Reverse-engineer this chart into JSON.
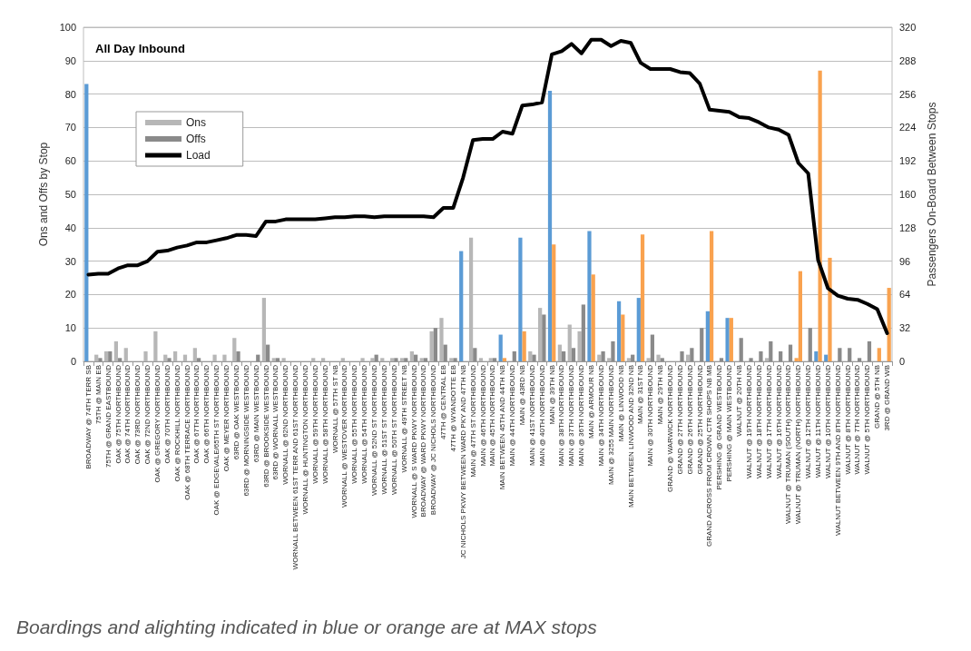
{
  "chart_data": {
    "type": "bar",
    "title": "All Day Inbound",
    "ylabel": "Ons and Offs by Stop",
    "y2label": "Passengers On-Board Between Stops",
    "annotations": [
      "Boardings and alighting indicated in blue or orange are at MAX stops"
    ],
    "categories": [
      "BROADWAY @ 74TH TERR SB",
      "75TH @ MAIN EB",
      "75TH @ GRAND EASTBOUND",
      "OAK @ 75TH NORTHBOUND",
      "OAK @ 74TH NORTHBOUND",
      "OAK @ 73RD NORTHBOUND",
      "OAK @ 72ND NORTHBOUND",
      "OAK @ GREGORY NORTHBOUND",
      "OAK @ 70TH NORTHBOUND",
      "OAK @ ROCKHILL NORTHBOUND",
      "OAK @ 68TH TERRACE NORTHBOUND",
      "OAK @ 67TH NORTHBOUND",
      "OAK @ 66TH NORTHBOUND",
      "OAK @ EDGEVALE/65TH ST NORTHBOUND",
      "OAK @ MEYER NORTHBOUND",
      "63RD @ OAK WESTBOUND",
      "63RD @ MORNINGSIDE WESTBOUND",
      "63RD @ MAIN WESTBOUND",
      "63RD @ BROOKSIDE WESTBOUND",
      "63RD @ WORNALL WESTBOUND",
      "WORNALL @ 62ND NORTHBOUND",
      "WORNALL BETWEEN 61ST TERR AND 61ST NORTHBOUND",
      "WORNALL @ HUNTINGTON NORTHBOUND",
      "WORNALL @ 59TH NORTHBOUND",
      "WORNALL @ 58TH NORTHBOUND",
      "WORNALL @ 57TH ST NB",
      "WORNALL @ WESTOVER NORTHBOUND",
      "WORNALL @ 55TH NORTHBOUND",
      "WORNALL @ 54TH NORTHBOUND",
      "WORNALL @ 52ND ST NORTHBOUND",
      "WORNALL @ 51ST ST NORTHBOUND",
      "WORNALL @ 50TH ST NORTHBOUND",
      "WORNALL @ 49TH STREET NB",
      "WORNALL @ S WARD PKWY NORTHBOUND",
      "BROADWAY @ WARD PKWY NORTHBOUND",
      "BROADWAY @ JC NICHOLS NORTHBOUND",
      "47TH @ CENTRAL EB",
      "47TH @ WYANDOTTE EB",
      "JC NICHOLS PKWY BETWEEN WARD PKY AND 47TH NB",
      "MAIN @ 47TH ST NORTHBOUND",
      "MAIN @ 46TH NORTHBOUND",
      "MAIN @ 45TH NORTHBOUND",
      "MAIN BETWEEN 45TH AND 44TH NB",
      "MAIN @ 44TH NORTHBOUND",
      "MAIN @ 43RD NB",
      "MAIN @ 41ST NORTHBOUND",
      "MAIN @ 40TH NORTHBOUND",
      "MAIN @ 39TH NB",
      "MAIN @ 38TH NORTHBOUND",
      "MAIN @ 37TH NORTHBOUND",
      "MAIN @ 36TH NORTHBOUND",
      "MAIN @ ARMOUR NB",
      "MAIN @ 34TH NORTHBOUND",
      "MAIN @ 3255 MAIN NORTHBOUND",
      "MAIN @ LINWOOD NB",
      "MAIN BETWEEN LINWOOD AND 32ND NB",
      "MAIN @ 31ST NB",
      "MAIN @ 30TH NORTHBOUND",
      "MAIN @ 29TH NB",
      "GRAND @ WARWICK NORTHBOUND",
      "GRAND @ 27TH NORTHBOUND",
      "GRAND @ 26TH NORTHBOUND",
      "GRAND @ 25TH NORTHBOUND",
      "GRAND ACROSS FROM CROWN CTR SHOPS NB MB",
      "PERSHING @ GRAND WESTBOUND",
      "PERSHING @ MAIN WESTBOUND",
      "WALNUT @ 20TH NB",
      "WALNUT @ 19TH NORTHBOUND",
      "WALNUT @ 18TH NORTHBOUND",
      "WALNUT @ 17TH NORTHBOUND",
      "WALNUT @ 16TH NORTHBOUND",
      "WALNUT @ TRUMAN (SOUTH) NORTHBOUND",
      "WALNUT @ TRUMAN (NORTH) NORTHBOUND",
      "WALNUT @ 12TH NORTHBOUND",
      "WALNUT @ 11TH NORTHBOUND",
      "WALNUT @ 10TH NORTHBOUND",
      "WALNUT BETWEEN 9TH AND 8TH NORTHBOUND",
      "WALNUT @ 8TH NORTHBOUND",
      "WALNUT @ 7TH NORTHBOUND",
      "WALNUT @ 5TH NORTHBOUND",
      "GRAND @ 5TH NB",
      "3RD @ GRAND WB"
    ],
    "series": [
      {
        "name": "Ons",
        "color": "#b7b7b7",
        "values": [
          83,
          2,
          3,
          6,
          4,
          0,
          3,
          9,
          2,
          3,
          2,
          4,
          0,
          2,
          2,
          7,
          0,
          0,
          19,
          1,
          1,
          0,
          0,
          1,
          1,
          0,
          1,
          0,
          1,
          1,
          1,
          1,
          1,
          3,
          1,
          9,
          13,
          1,
          33,
          37,
          1,
          1,
          8,
          0,
          37,
          3,
          16,
          81,
          5,
          11,
          9,
          39,
          2,
          1,
          18,
          1,
          19,
          1,
          2,
          0,
          0,
          2,
          0,
          15,
          0,
          13,
          0,
          0,
          0,
          1,
          0,
          0,
          1,
          0,
          3,
          2,
          0,
          0,
          0,
          0,
          0,
          0
        ],
        "colors": [
          "#5b9bd5",
          "#b7b7b7",
          "#b7b7b7",
          "#b7b7b7",
          "#b7b7b7",
          "#b7b7b7",
          "#b7b7b7",
          "#b7b7b7",
          "#b7b7b7",
          "#b7b7b7",
          "#b7b7b7",
          "#b7b7b7",
          "#b7b7b7",
          "#b7b7b7",
          "#b7b7b7",
          "#b7b7b7",
          "#b7b7b7",
          "#b7b7b7",
          "#b7b7b7",
          "#b7b7b7",
          "#b7b7b7",
          "#b7b7b7",
          "#b7b7b7",
          "#b7b7b7",
          "#b7b7b7",
          "#b7b7b7",
          "#b7b7b7",
          "#b7b7b7",
          "#b7b7b7",
          "#b7b7b7",
          "#b7b7b7",
          "#b7b7b7",
          "#b7b7b7",
          "#b7b7b7",
          "#b7b7b7",
          "#b7b7b7",
          "#b7b7b7",
          "#b7b7b7",
          "#5b9bd5",
          "#b7b7b7",
          "#b7b7b7",
          "#b7b7b7",
          "#5b9bd5",
          "#b7b7b7",
          "#5b9bd5",
          "#b7b7b7",
          "#b7b7b7",
          "#5b9bd5",
          "#b7b7b7",
          "#b7b7b7",
          "#b7b7b7",
          "#5b9bd5",
          "#b7b7b7",
          "#b7b7b7",
          "#5b9bd5",
          "#b7b7b7",
          "#5b9bd5",
          "#b7b7b7",
          "#b7b7b7",
          "#b7b7b7",
          "#b7b7b7",
          "#b7b7b7",
          "#b7b7b7",
          "#5b9bd5",
          "#b7b7b7",
          "#5b9bd5",
          "#b7b7b7",
          "#b7b7b7",
          "#b7b7b7",
          "#b7b7b7",
          "#b7b7b7",
          "#b7b7b7",
          "#f9a24f",
          "#b7b7b7",
          "#5b9bd5",
          "#5b9bd5",
          "#b7b7b7",
          "#b7b7b7",
          "#b7b7b7",
          "#b7b7b7",
          "#b7b7b7",
          "#b7b7b7"
        ]
      },
      {
        "name": "Offs",
        "color": "#8a8a8a",
        "values": [
          0,
          1,
          3,
          1,
          0,
          0,
          0,
          0,
          1,
          0,
          0,
          1,
          0,
          0,
          0,
          3,
          0,
          2,
          5,
          1,
          0,
          0,
          0,
          0,
          0,
          0,
          0,
          0,
          0,
          2,
          0,
          1,
          1,
          2,
          1,
          10,
          5,
          1,
          0,
          4,
          0,
          1,
          1,
          3,
          9,
          2,
          14,
          35,
          3,
          4,
          17,
          26,
          3,
          6,
          14,
          2,
          38,
          8,
          1,
          0,
          3,
          4,
          10,
          39,
          1,
          13,
          7,
          1,
          3,
          6,
          3,
          5,
          27,
          10,
          87,
          31,
          4,
          4,
          1,
          6,
          4,
          22
        ],
        "colors": [
          "#8a8a8a",
          "#8a8a8a",
          "#8a8a8a",
          "#8a8a8a",
          "#8a8a8a",
          "#8a8a8a",
          "#8a8a8a",
          "#8a8a8a",
          "#8a8a8a",
          "#8a8a8a",
          "#8a8a8a",
          "#8a8a8a",
          "#8a8a8a",
          "#8a8a8a",
          "#8a8a8a",
          "#8a8a8a",
          "#8a8a8a",
          "#8a8a8a",
          "#8a8a8a",
          "#8a8a8a",
          "#8a8a8a",
          "#8a8a8a",
          "#8a8a8a",
          "#8a8a8a",
          "#8a8a8a",
          "#8a8a8a",
          "#8a8a8a",
          "#8a8a8a",
          "#8a8a8a",
          "#8a8a8a",
          "#8a8a8a",
          "#8a8a8a",
          "#8a8a8a",
          "#8a8a8a",
          "#8a8a8a",
          "#8a8a8a",
          "#8a8a8a",
          "#8a8a8a",
          "#8a8a8a",
          "#8a8a8a",
          "#8a8a8a",
          "#8a8a8a",
          "#f9a24f",
          "#8a8a8a",
          "#f9a24f",
          "#8a8a8a",
          "#8a8a8a",
          "#f9a24f",
          "#8a8a8a",
          "#8a8a8a",
          "#8a8a8a",
          "#f9a24f",
          "#8a8a8a",
          "#8a8a8a",
          "#f9a24f",
          "#8a8a8a",
          "#f9a24f",
          "#8a8a8a",
          "#8a8a8a",
          "#8a8a8a",
          "#8a8a8a",
          "#8a8a8a",
          "#8a8a8a",
          "#f9a24f",
          "#8a8a8a",
          "#f9a24f",
          "#8a8a8a",
          "#8a8a8a",
          "#8a8a8a",
          "#8a8a8a",
          "#8a8a8a",
          "#8a8a8a",
          "#f9a24f",
          "#8a8a8a",
          "#f9a24f",
          "#f9a24f",
          "#8a8a8a",
          "#8a8a8a",
          "#8a8a8a",
          "#8a8a8a",
          "#f9a24f",
          "#f9a24f"
        ]
      },
      {
        "name": "Load",
        "type": "line",
        "axis": "y2",
        "color": "#000000",
        "values": [
          83,
          84,
          84,
          89,
          92,
          92,
          96,
          105,
          106,
          109,
          111,
          114,
          114,
          116,
          118,
          121,
          121,
          120,
          134,
          134,
          136,
          136,
          136,
          136,
          137,
          138,
          138,
          139,
          139,
          138,
          139,
          139,
          139,
          139,
          139,
          138,
          147,
          147,
          176,
          212,
          213,
          213,
          220,
          218,
          245,
          246,
          248,
          294,
          297,
          304,
          295,
          308,
          308,
          302,
          307,
          305,
          286,
          280,
          280,
          280,
          277,
          276,
          266,
          241,
          240,
          239,
          234,
          233,
          229,
          224,
          222,
          217,
          190,
          180,
          97,
          70,
          63,
          60,
          59,
          55,
          50,
          27
        ]
      }
    ],
    "ylim": [
      0,
      100
    ],
    "yticks": [
      0,
      10,
      20,
      30,
      40,
      50,
      60,
      70,
      80,
      90,
      100
    ],
    "y2lim": [
      0,
      320
    ],
    "y2ticks": [
      0,
      32,
      64,
      96,
      128,
      160,
      192,
      224,
      256,
      288,
      320
    ],
    "grid": "y",
    "legend": "top left",
    "marker": "none",
    "line_style": "solid"
  }
}
